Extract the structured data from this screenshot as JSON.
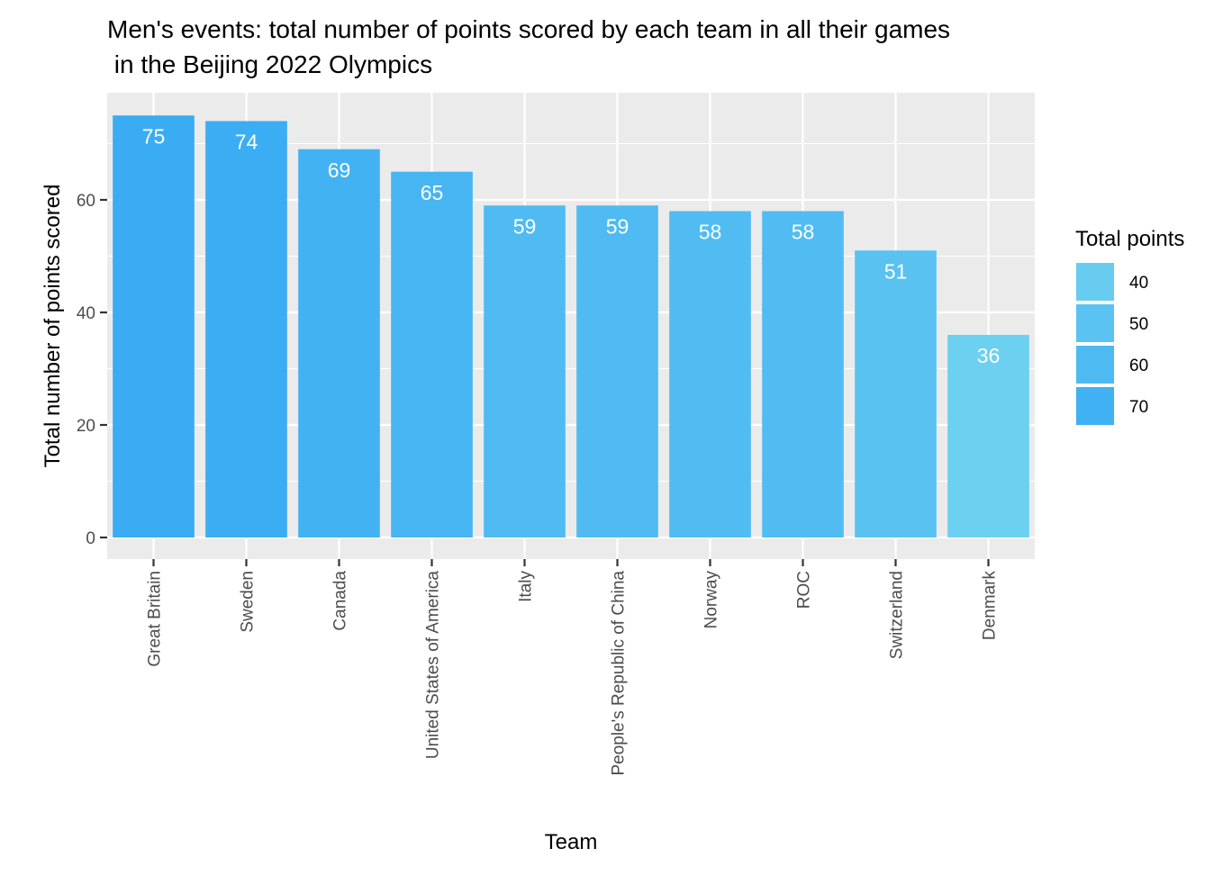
{
  "chart_data": {
    "type": "bar",
    "title_lines": [
      "Men's events: total number of points scored by each team in all their games",
      " in the Beijing 2022 Olympics"
    ],
    "xlabel": "Team",
    "ylabel": "Total number of points scored",
    "categories": [
      "Great Britain",
      "Sweden",
      "Canada",
      "United States of America",
      "Italy",
      "People's Republic of China",
      "Norway",
      "ROC",
      "Switzerland",
      "Denmark"
    ],
    "values": [
      75,
      74,
      69,
      65,
      59,
      59,
      58,
      58,
      51,
      36
    ],
    "ylim": [
      0,
      78
    ],
    "yticks": [
      0,
      20,
      40,
      60
    ],
    "grid": true,
    "panel_background": "#EBEBEB",
    "grid_color": "#FFFFFF",
    "data_label_color": "#FFFFFF",
    "color_scale": {
      "low_value": 36,
      "low_color": "#6CD0F0",
      "high_value": 75,
      "high_color": "#3AACF3"
    },
    "legend": {
      "title": "Total points",
      "position": "right",
      "breaks": [
        40,
        50,
        60,
        70
      ]
    }
  }
}
